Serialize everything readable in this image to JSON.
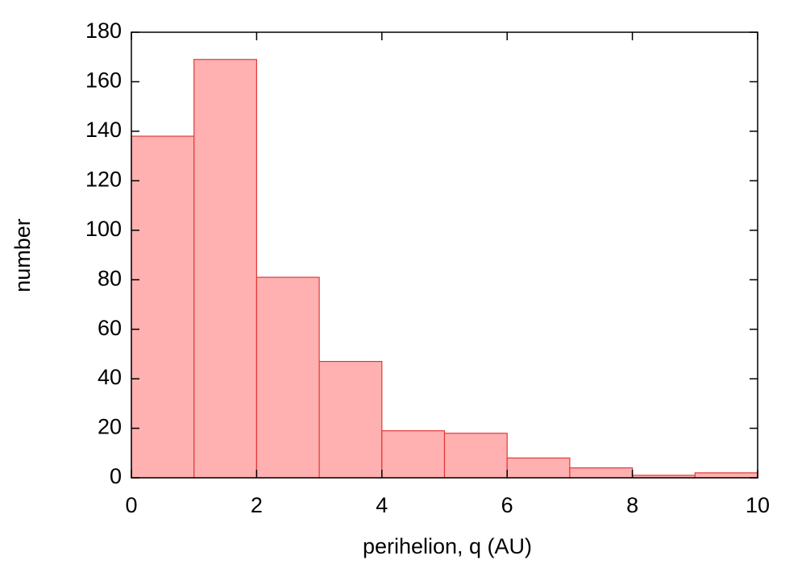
{
  "chart_data": {
    "type": "histogram",
    "xlabel": "perihelion, q (AU)",
    "ylabel": "number",
    "bins": [
      0,
      1,
      2,
      3,
      4,
      5,
      6,
      7,
      8,
      9,
      10
    ],
    "counts": [
      138,
      169,
      81,
      47,
      19,
      18,
      8,
      4,
      1,
      2
    ],
    "color": "#ffb0b0",
    "edgecolor": "#e03a3a",
    "xlim": [
      0,
      10
    ],
    "xticks": [
      0,
      2,
      4,
      6,
      8,
      10
    ],
    "ylim": [
      0,
      180
    ],
    "yticks": [
      0,
      20,
      40,
      60,
      80,
      100,
      120,
      140,
      160,
      180
    ],
    "grid": false
  }
}
